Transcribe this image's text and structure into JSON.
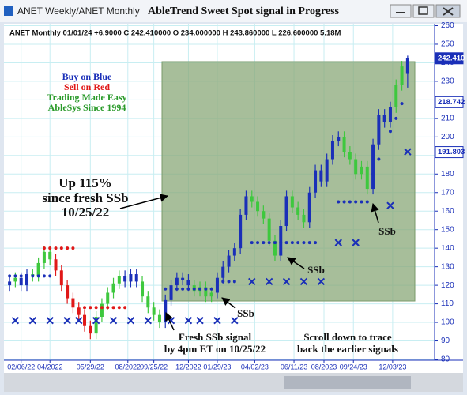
{
  "window": {
    "title_left": "ANET Weekly/ANET Monthly",
    "title": "AbleTrend Sweet Spot signal in Progress"
  },
  "chart_data": {
    "type": "candlestick",
    "header": "ANET  Monthly 01/01/24 +6.9000 C 242.410000 O 234.000000 H 243.860000 L 226.600000 5.18M",
    "xlim": [
      -0.7,
      73.4
    ],
    "ylim": [
      80,
      260
    ],
    "yticks": [
      80,
      90,
      100,
      110,
      120,
      130,
      140,
      150,
      160,
      170,
      180,
      190,
      200,
      210,
      220,
      230,
      240,
      250,
      260
    ],
    "xticks": [
      {
        "value": 2,
        "label": "02/06/22"
      },
      {
        "value": 7,
        "label": "04/2022"
      },
      {
        "value": 14,
        "label": "05/29/22"
      },
      {
        "value": 20.5,
        "label": "08/2022"
      },
      {
        "value": 25,
        "label": "09/25/22"
      },
      {
        "value": 31,
        "label": "12/2022"
      },
      {
        "value": 36,
        "label": "01/29/23"
      },
      {
        "value": 42.5,
        "label": "04/02/23"
      },
      {
        "value": 49.3,
        "label": "06/11/23"
      },
      {
        "value": 54.5,
        "label": "08/2023"
      },
      {
        "value": 59.6,
        "label": "09/24/23"
      },
      {
        "value": 66.4,
        "label": "12/03/23"
      }
    ],
    "grid": true,
    "palette": {
      "b": "#1a2fb8",
      "g": "#3ec83e",
      "r": "#e01818"
    },
    "open": [
      120,
      122,
      124,
      120,
      126,
      125,
      132,
      138,
      134,
      128,
      120,
      113,
      108,
      104,
      98,
      94,
      103,
      110,
      116,
      121,
      125,
      122,
      126,
      122,
      114,
      108,
      104,
      100,
      112,
      120,
      124,
      123,
      120,
      117,
      119,
      114,
      116,
      124,
      130,
      136,
      140,
      158,
      168,
      165,
      160,
      156,
      144,
      136,
      152,
      168,
      162,
      158,
      154,
      170,
      182,
      176,
      188,
      198,
      200,
      192,
      188,
      180,
      184,
      172,
      196,
      212,
      208,
      216,
      228,
      234
    ],
    "high": [
      125,
      127,
      127,
      129,
      129,
      135,
      141,
      141,
      137,
      131,
      123,
      116,
      111,
      107,
      101,
      106,
      113,
      119,
      124,
      128,
      128,
      129,
      129,
      125,
      117,
      111,
      107,
      115,
      123,
      127,
      127,
      126,
      123,
      122,
      122,
      119,
      127,
      133,
      139,
      143,
      161,
      171,
      171,
      168,
      163,
      159,
      147,
      155,
      171,
      171,
      165,
      161,
      173,
      185,
      185,
      191,
      201,
      203,
      203,
      195,
      191,
      187,
      187,
      199,
      215,
      215,
      219,
      231,
      241,
      243.86
    ],
    "low": [
      117,
      119,
      117,
      117,
      122,
      122,
      129,
      131,
      125,
      117,
      110,
      105,
      101,
      95,
      91,
      91,
      100,
      107,
      113,
      118,
      119,
      119,
      119,
      111,
      105,
      101,
      97,
      97,
      109,
      117,
      120,
      117,
      114,
      114,
      111,
      111,
      113,
      121,
      127,
      133,
      137,
      155,
      162,
      157,
      153,
      141,
      133,
      133,
      149,
      159,
      155,
      151,
      151,
      167,
      173,
      173,
      185,
      195,
      189,
      185,
      177,
      177,
      169,
      169,
      193,
      205,
      205,
      213,
      225,
      226.6
    ],
    "close": [
      122,
      124,
      120,
      126,
      125,
      132,
      138,
      134,
      128,
      120,
      113,
      108,
      104,
      98,
      94,
      103,
      110,
      116,
      121,
      125,
      122,
      126,
      122,
      114,
      108,
      104,
      100,
      112,
      120,
      124,
      123,
      120,
      117,
      119,
      114,
      116,
      124,
      130,
      136,
      140,
      158,
      168,
      165,
      160,
      156,
      144,
      136,
      152,
      168,
      162,
      158,
      154,
      170,
      182,
      176,
      188,
      198,
      200,
      192,
      188,
      180,
      184,
      172,
      196,
      212,
      208,
      216,
      228,
      238,
      242.41
    ],
    "colors": [
      "b",
      "g",
      "b",
      "b",
      "g",
      "g",
      "g",
      "g",
      "r",
      "r",
      "r",
      "r",
      "r",
      "r",
      "r",
      "g",
      "g",
      "g",
      "g",
      "g",
      "b",
      "b",
      "b",
      "g",
      "g",
      "g",
      "g",
      "b",
      "b",
      "b",
      "b",
      "b",
      "g",
      "g",
      "g",
      "g",
      "b",
      "b",
      "b",
      "b",
      "b",
      "b",
      "g",
      "g",
      "g",
      "g",
      "g",
      "b",
      "b",
      "g",
      "g",
      "g",
      "b",
      "b",
      "b",
      "b",
      "b",
      "b",
      "g",
      "g",
      "g",
      "g",
      "g",
      "b",
      "b",
      "b",
      "b",
      "g",
      "g",
      "b"
    ],
    "signals": [
      {
        "marker": "dot",
        "color": "#1a2fb8",
        "x": [
          0,
          1,
          2,
          3,
          4,
          5,
          6,
          7,
          27,
          28,
          29,
          30,
          31,
          32,
          33,
          34,
          35,
          36,
          37,
          38,
          39,
          42,
          43,
          44,
          45,
          46,
          47,
          48,
          49,
          50,
          51,
          52,
          53,
          57,
          58,
          59,
          60,
          61,
          62,
          63,
          64,
          66,
          67,
          68
        ],
        "values": [
          125,
          125,
          125,
          125,
          125,
          125,
          125,
          125,
          118,
          118,
          118,
          118,
          118,
          118,
          118,
          118,
          118,
          122,
          122,
          122,
          122,
          143,
          143,
          143,
          143,
          143,
          143,
          143,
          143,
          143,
          143,
          143,
          143,
          165,
          165,
          165,
          165,
          165,
          165,
          180,
          188,
          203,
          210,
          218
        ]
      },
      {
        "marker": "dot",
        "color": "#e01818",
        "x": [
          6,
          7,
          8,
          9,
          10,
          11,
          13,
          14,
          15,
          16,
          17,
          18,
          19,
          20
        ],
        "values": [
          140,
          140,
          140,
          140,
          140,
          140,
          108,
          108,
          108,
          108,
          108,
          108,
          108,
          108
        ]
      },
      {
        "marker": "cross",
        "color": "#1a2fb8",
        "x": [
          1,
          4,
          7,
          10,
          12,
          15,
          18,
          21,
          24,
          28,
          31,
          33,
          36,
          39,
          42,
          45,
          48,
          51,
          54,
          57,
          60,
          66,
          69
        ],
        "values": [
          101,
          101,
          101,
          101,
          101,
          101,
          101,
          101,
          101,
          101,
          101,
          101,
          101,
          101,
          122,
          122,
          122,
          122,
          122,
          143,
          143,
          163,
          192
        ]
      }
    ],
    "price_labels": [
      {
        "value": 242.41,
        "label": "242.410"
      },
      {
        "value": 218.742,
        "label": "218.742"
      },
      {
        "value": 191.803,
        "label": "191.803"
      }
    ],
    "annotations": {
      "legend": [
        "Buy on Blue",
        "Sell on Red",
        "Trading Made Easy",
        "AbleSys Since 1994"
      ],
      "gain": [
        "Up 115%",
        "since fresh SSb",
        "10/25/22"
      ],
      "fresh": [
        "Fresh SSb signal",
        "by 4pm ET on 10/25/22"
      ],
      "scroll": [
        "Scroll down to trace",
        "back the earlier signals"
      ],
      "ssb": [
        "SSb",
        "SSb",
        "SSb"
      ]
    }
  }
}
